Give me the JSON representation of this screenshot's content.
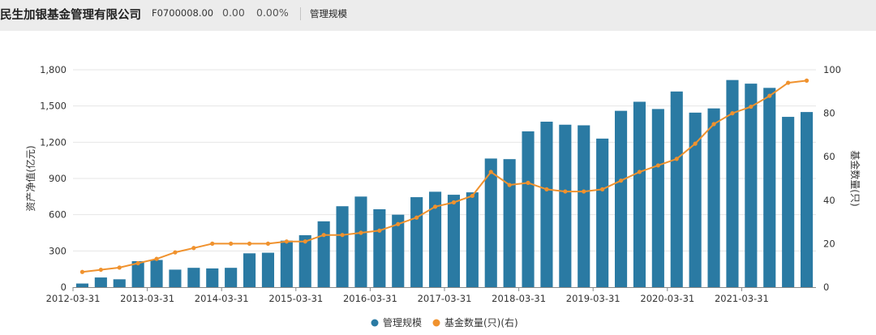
{
  "header": {
    "fund_name": "民生加银基金管理有限公司",
    "fund_code": "F0700008.00",
    "price": "0.00",
    "change": "0.00%",
    "tab_label": "管理规模"
  },
  "colors": {
    "bar": "#2a7aa3",
    "line": "#f0922e",
    "grid": "#e6e6e6",
    "axis": "#888888",
    "text": "#333333"
  },
  "chart_data": {
    "type": "bar",
    "title": "",
    "xlabel": "",
    "ylabel": "资产净值(亿元)",
    "y2label": "基金数量(只)",
    "ylim": [
      0,
      1800
    ],
    "yticks": [
      0,
      300,
      600,
      900,
      "1,200",
      "1,500",
      "1,800"
    ],
    "y2lim": [
      0,
      100
    ],
    "y2ticks": [
      0,
      20,
      40,
      60,
      80,
      100
    ],
    "x_tick_labels": [
      "2012-03-31",
      "2013-03-31",
      "2014-03-31",
      "2015-03-31",
      "2016-03-31",
      "2017-03-31",
      "2018-03-31",
      "2019-03-31",
      "2020-03-31",
      "2021-03-31"
    ],
    "legend_position": "bottom-center",
    "grid": true,
    "series": [
      {
        "name": "管理规模",
        "kind": "bar",
        "axis": "left",
        "values": [
          30,
          80,
          65,
          215,
          225,
          145,
          160,
          155,
          160,
          280,
          285,
          385,
          430,
          545,
          670,
          750,
          645,
          600,
          745,
          790,
          765,
          785,
          1065,
          1060,
          1290,
          1370,
          1345,
          1340,
          1230,
          1460,
          1535,
          1475,
          1620,
          1445,
          1480,
          1715,
          1685,
          1650,
          1410,
          1450
        ]
      },
      {
        "name": "基金数量(只)(右)",
        "kind": "line",
        "axis": "right",
        "values": [
          7,
          8,
          9,
          11,
          13,
          16,
          18,
          20,
          20,
          20,
          20,
          21,
          21,
          24,
          24,
          25,
          26,
          29,
          32,
          37,
          39,
          42,
          53,
          47,
          48,
          45,
          44,
          44,
          45,
          49,
          53,
          56,
          59,
          66,
          75,
          80,
          83,
          88,
          94,
          95
        ]
      }
    ]
  }
}
